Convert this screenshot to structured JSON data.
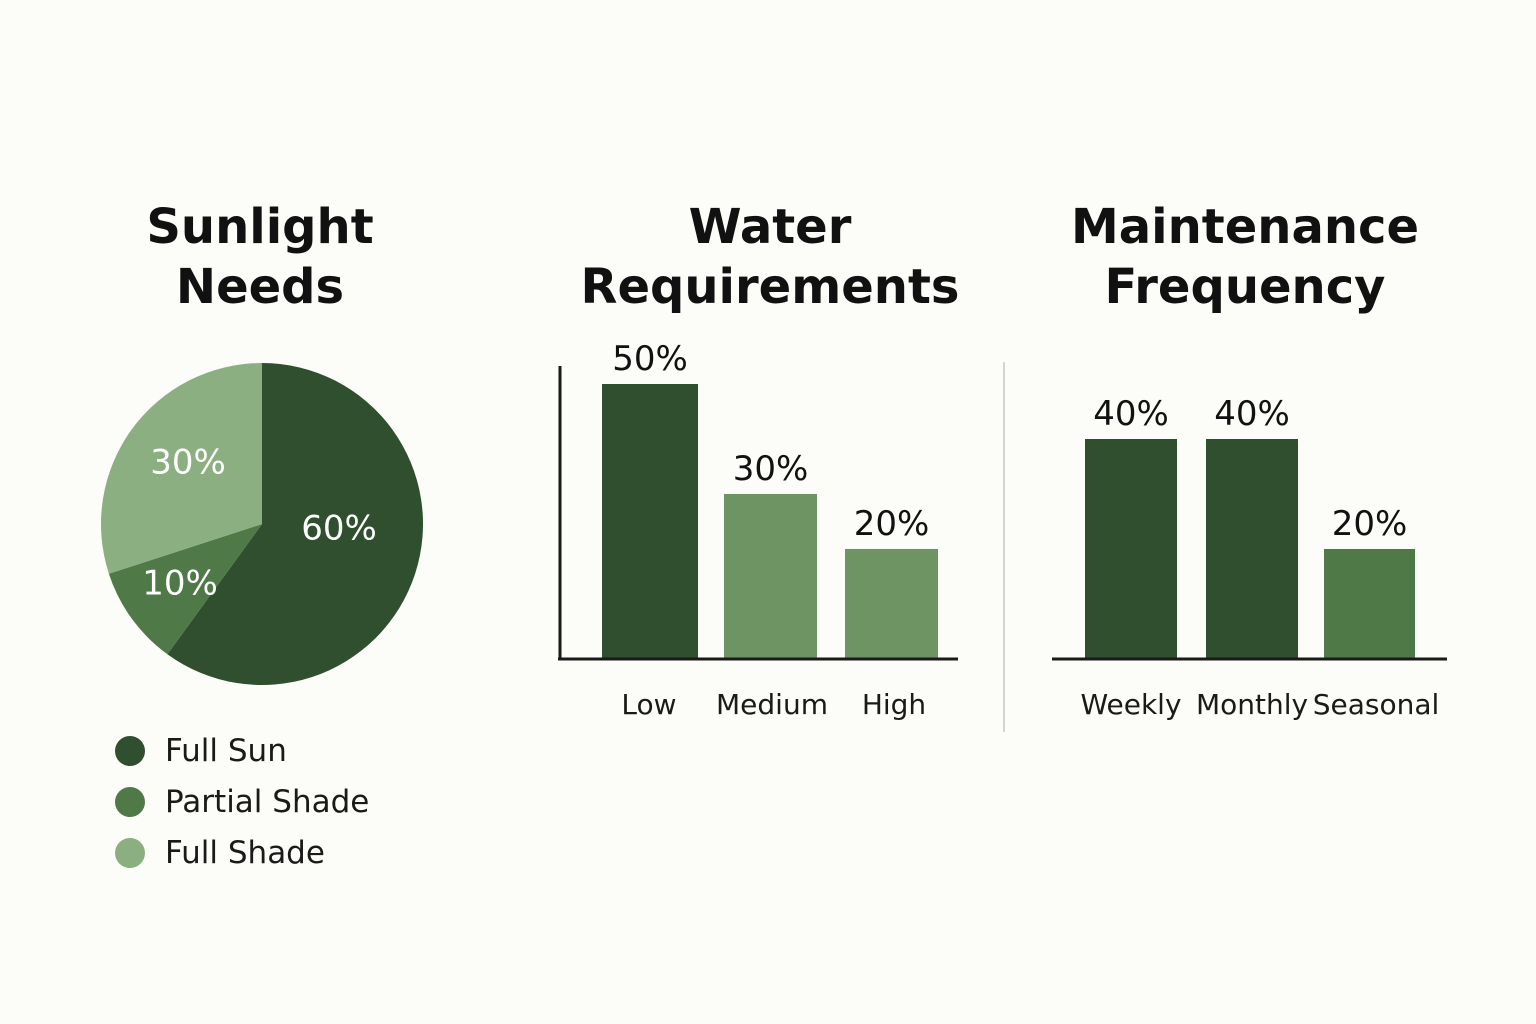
{
  "colors": {
    "dark_green": "#2f4f2e",
    "mid_green": "#4f7a48",
    "sage_green": "#6f9464",
    "light_green": "#8caf82",
    "axis": "#1a1a1a",
    "divider": "#d6d6d0",
    "background": "#fcfcf8"
  },
  "chart_data": [
    {
      "type": "pie",
      "title_lines": [
        "Sunlight",
        "Needs"
      ],
      "slices": [
        {
          "label": "Full Sun",
          "value": 60,
          "value_label": "60%",
          "color": "#2f4f2e"
        },
        {
          "label": "Partial Shade",
          "value": 10,
          "value_label": "10%",
          "color": "#4f7a48"
        },
        {
          "label": "Full Shade",
          "value": 30,
          "value_label": "30%",
          "color": "#8caf82"
        }
      ],
      "legend": [
        "Full Sun",
        "Partial Shade",
        "Full Shade"
      ],
      "legend_position": "bottom-left"
    },
    {
      "type": "bar",
      "title_lines": [
        "Water",
        "Requirements"
      ],
      "categories": [
        "Low",
        "Medium",
        "High"
      ],
      "values": [
        50,
        30,
        20
      ],
      "value_labels": [
        "50%",
        "30%",
        "20%"
      ],
      "bar_colors": [
        "#2f4f2e",
        "#6f9464",
        "#6f9464"
      ],
      "ylim": [
        0,
        60
      ],
      "grid": false
    },
    {
      "type": "bar",
      "title_lines": [
        "Maintenance",
        "Frequency"
      ],
      "categories": [
        "Weekly",
        "Monthly",
        "Seasonal"
      ],
      "values": [
        40,
        40,
        20
      ],
      "value_labels": [
        "40%",
        "40%",
        "20%"
      ],
      "bar_colors": [
        "#2f4f2e",
        "#2f4f2e",
        "#4f7a48"
      ],
      "ylim": [
        0,
        60
      ],
      "grid": false
    }
  ]
}
